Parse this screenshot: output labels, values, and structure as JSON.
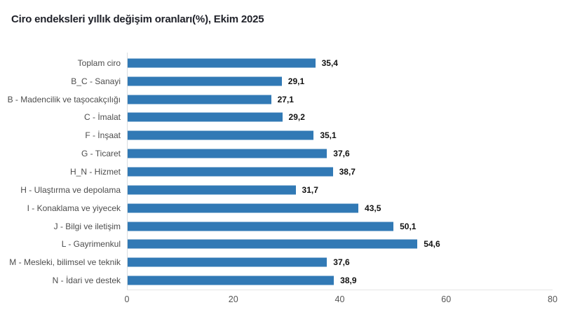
{
  "chart_data": {
    "type": "bar",
    "orientation": "horizontal",
    "title": "Ciro endeksleri yıllık değişim oranları(%), Ekim 2025",
    "categories": [
      "Toplam ciro",
      "B_C - Sanayi",
      "B - Madencilik ve taşocakçılığı",
      "C - İmalat",
      "F - İnşaat",
      "G - Ticaret",
      "H_N - Hizmet",
      "H - Ulaştırma ve depolama",
      "I - Konaklama ve yiyecek",
      "J - Bilgi ve iletişim",
      "L - Gayrimenkul",
      "M - Mesleki, bilimsel ve teknik",
      "N - İdari ve destek"
    ],
    "values": [
      35.4,
      29.1,
      27.1,
      29.2,
      35.1,
      37.6,
      38.7,
      31.7,
      43.5,
      50.1,
      54.6,
      37.6,
      38.9
    ],
    "value_labels": [
      "35,4",
      "29,1",
      "27,1",
      "29,2",
      "35,1",
      "37,6",
      "38,7",
      "31,7",
      "43,5",
      "50,1",
      "54,6",
      "37,6",
      "38,9"
    ],
    "xlim": [
      0,
      80
    ],
    "x_ticks": [
      "0",
      "20",
      "40",
      "60",
      "80"
    ],
    "bar_color": "#3179b5",
    "grid": false,
    "legend": false,
    "value_labels_position": "end-of-bar"
  }
}
